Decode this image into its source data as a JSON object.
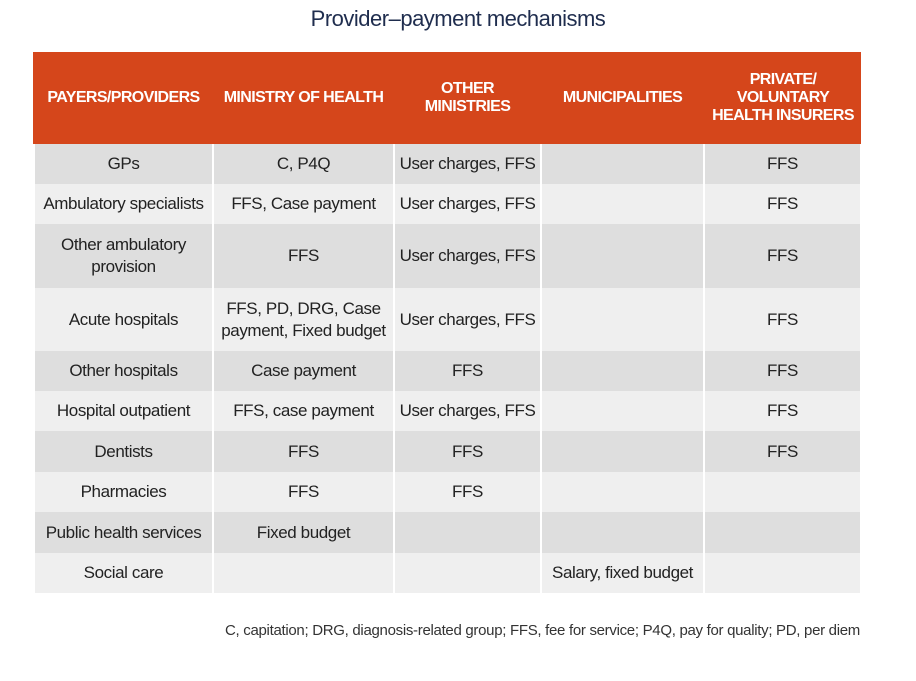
{
  "header": {
    "title": "Provider–payment mechanisms"
  },
  "table": {
    "columns": [
      "PAYERS/PROVIDERS",
      "MINISTRY OF HEALTH",
      "OTHER MINISTRIES",
      "MUNICIPALITIES",
      "PRIVATE/ VOLUNTARY HEALTH INSURERS"
    ],
    "rows": [
      [
        "GPs",
        "C, P4Q",
        "User charges, FFS",
        null,
        "FFS"
      ],
      [
        "Ambulatory specialists",
        "FFS, Case payment",
        "User charges, FFS",
        null,
        "FFS"
      ],
      [
        "Other ambulatory provision",
        "FFS",
        "User charges, FFS",
        null,
        "FFS"
      ],
      [
        "Acute hospitals",
        "FFS, PD, DRG, Case payment, Fixed budget",
        "User charges, FFS",
        null,
        "FFS"
      ],
      [
        "Other hospitals",
        "Case payment",
        "FFS",
        null,
        "FFS"
      ],
      [
        "Hospital outpatient",
        "FFS, case payment",
        "User charges, FFS",
        null,
        "FFS"
      ],
      [
        "Dentists",
        "FFS",
        "FFS",
        null,
        "FFS"
      ],
      [
        "Pharmacies",
        "FFS",
        "FFS",
        null,
        null
      ],
      [
        "Public health services",
        "Fixed budget",
        null,
        null,
        null
      ],
      [
        "Social care",
        null,
        null,
        "Salary, fixed budget",
        null
      ]
    ]
  },
  "footnote": "C, capitation; DRG, diagnosis-related group; FFS, fee for service; P4Q, pay for quality; PD, per diem"
}
